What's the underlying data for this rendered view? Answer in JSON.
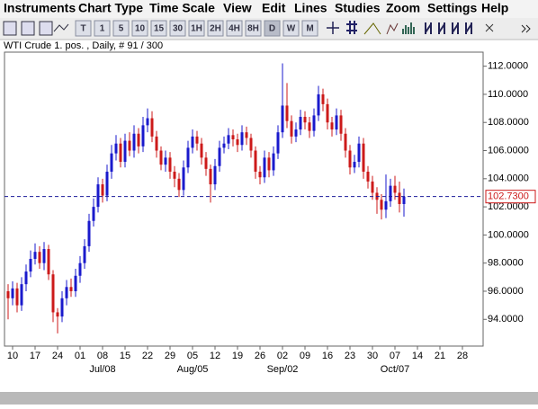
{
  "menu": [
    "Instruments",
    "Chart Type",
    "Time Scale",
    "View",
    "Edit",
    "Lines",
    "Studies",
    "Zoom",
    "Settings",
    "Help"
  ],
  "toolbar": {
    "buttons": [
      "T",
      "1",
      "5",
      "10",
      "15",
      "30",
      "1H",
      "2H",
      "4H",
      "8H",
      "D",
      "W",
      "M"
    ],
    "active": "D"
  },
  "chart_data": {
    "type": "candlestick",
    "title": "WTI Crude 1. pos. , Daily, # 91 / 300",
    "up_color": "#1a1acc",
    "down_color": "#cc1a1a",
    "x": [
      0,
      1,
      2,
      3,
      4,
      5,
      6,
      7,
      8,
      9,
      10,
      11,
      12,
      13,
      14,
      15,
      16,
      17,
      18,
      19,
      20,
      21,
      22,
      23,
      24,
      25,
      26,
      27,
      28,
      29,
      30,
      31,
      32,
      33,
      34,
      35,
      36,
      37,
      38,
      39,
      40,
      41,
      42,
      43,
      44,
      45,
      46,
      47,
      48,
      49,
      50,
      51,
      52,
      53,
      54,
      55,
      56,
      57,
      58,
      59,
      60,
      61,
      62,
      63,
      64,
      65,
      66,
      67,
      68,
      69,
      70,
      71,
      72,
      73,
      74,
      75,
      76,
      77,
      78,
      79,
      80,
      81,
      82,
      83,
      84,
      85,
      86,
      87,
      88
    ],
    "open": [
      96.0,
      95.5,
      96.2,
      95.0,
      96.5,
      97.4,
      98.3,
      98.8,
      98.0,
      99.0,
      97.2,
      94.5,
      94.2,
      95.5,
      96.3,
      96.0,
      97.1,
      98.0,
      99.2,
      101.0,
      102.0,
      103.6,
      102.8,
      104.5,
      105.8,
      106.5,
      105.2,
      106.7,
      106.0,
      107.2,
      106.3,
      107.8,
      108.3,
      107.0,
      106.0,
      105.0,
      105.5,
      104.5,
      104.0,
      103.2,
      104.8,
      106.2,
      107.0,
      106.5,
      105.5,
      104.7,
      103.6,
      104.9,
      106.2,
      106.5,
      107.1,
      106.8,
      106.4,
      107.3,
      106.9,
      106.0,
      104.5,
      104.1,
      105.5,
      104.6,
      105.8,
      107.3,
      109.2,
      108.1,
      107.0,
      107.5,
      108.4,
      108.0,
      107.4,
      108.5,
      110.0,
      109.3,
      108.0,
      107.5,
      108.5,
      107.2,
      106.0,
      104.8,
      105.2,
      106.5,
      104.5,
      103.8,
      103.0,
      102.5,
      101.8,
      102.4,
      103.5,
      103.0,
      102.2
    ],
    "high": [
      96.5,
      96.7,
      96.6,
      97.0,
      97.9,
      98.9,
      99.4,
      99.2,
      99.5,
      99.3,
      97.5,
      94.8,
      96.0,
      96.8,
      96.9,
      97.6,
      98.5,
      99.7,
      101.5,
      102.6,
      104.1,
      104.0,
      105.0,
      106.4,
      107.1,
      106.9,
      107.2,
      107.3,
      107.8,
      107.6,
      108.4,
      109.0,
      108.8,
      107.4,
      106.3,
      106.0,
      105.9,
      104.9,
      104.4,
      105.3,
      106.7,
      107.5,
      107.4,
      106.9,
      105.9,
      105.0,
      105.4,
      106.7,
      107.0,
      107.6,
      107.5,
      107.2,
      107.8,
      107.7,
      107.2,
      106.3,
      104.9,
      106.0,
      105.9,
      106.3,
      107.8,
      112.2,
      110.8,
      108.5,
      108.0,
      108.9,
      108.8,
      108.4,
      109.0,
      110.6,
      110.4,
      109.7,
      108.4,
      109.0,
      108.9,
      107.6,
      106.4,
      105.7,
      107.0,
      106.9,
      104.9,
      104.2,
      103.4,
      102.9,
      104.3,
      104.0,
      104.2,
      103.8,
      103.3
    ],
    "low": [
      94.0,
      95.0,
      94.5,
      94.6,
      96.0,
      97.0,
      97.9,
      97.6,
      97.5,
      96.8,
      93.8,
      93.0,
      93.8,
      95.0,
      95.6,
      95.6,
      96.6,
      97.6,
      98.8,
      100.6,
      101.6,
      102.3,
      102.4,
      104.0,
      105.3,
      104.8,
      104.8,
      105.6,
      105.5,
      105.8,
      105.9,
      107.3,
      106.6,
      105.5,
      104.6,
      104.5,
      104.0,
      103.4,
      102.7,
      102.8,
      104.4,
      105.8,
      106.0,
      105.0,
      104.2,
      102.3,
      103.2,
      104.5,
      105.8,
      106.1,
      106.3,
      105.9,
      106.0,
      106.4,
      105.5,
      104.0,
      103.6,
      103.7,
      104.1,
      104.2,
      105.4,
      106.9,
      107.6,
      106.5,
      106.6,
      107.1,
      107.5,
      106.9,
      107.0,
      108.1,
      108.8,
      107.5,
      107.0,
      107.1,
      106.7,
      105.5,
      104.3,
      104.4,
      104.8,
      104.0,
      103.3,
      102.5,
      101.5,
      101.1,
      101.2,
      102.0,
      102.5,
      101.6,
      101.3
    ],
    "close": [
      95.5,
      96.2,
      95.0,
      96.5,
      97.4,
      98.3,
      98.8,
      98.0,
      99.0,
      97.2,
      94.5,
      94.2,
      95.5,
      96.3,
      96.0,
      97.1,
      98.0,
      99.2,
      101.0,
      102.0,
      103.6,
      102.8,
      104.5,
      105.8,
      106.5,
      105.2,
      106.7,
      106.0,
      107.2,
      106.3,
      107.8,
      108.3,
      107.0,
      106.0,
      105.0,
      105.5,
      104.5,
      104.0,
      103.2,
      104.8,
      106.2,
      107.0,
      106.5,
      105.5,
      104.7,
      103.6,
      104.9,
      106.2,
      106.5,
      107.1,
      106.8,
      106.4,
      107.3,
      106.9,
      106.0,
      104.5,
      104.1,
      105.5,
      104.6,
      105.8,
      107.3,
      109.2,
      108.1,
      107.0,
      107.5,
      108.4,
      108.0,
      107.4,
      108.5,
      110.0,
      109.3,
      108.0,
      107.5,
      108.5,
      107.2,
      106.0,
      104.8,
      105.2,
      106.5,
      104.5,
      103.8,
      103.0,
      102.5,
      101.8,
      102.4,
      103.5,
      103.0,
      102.2,
      102.73
    ],
    "xlim": [
      -0.8,
      105.6
    ],
    "xticks": [
      {
        "value": 1,
        "label": "10"
      },
      {
        "value": 6,
        "label": "17"
      },
      {
        "value": 11,
        "label": "24"
      },
      {
        "value": 16,
        "label": "01"
      },
      {
        "value": 21,
        "label": "08"
      },
      {
        "value": 26,
        "label": "15"
      },
      {
        "value": 31,
        "label": "22"
      },
      {
        "value": 36,
        "label": "29"
      },
      {
        "value": 41,
        "label": "05"
      },
      {
        "value": 46,
        "label": "12"
      },
      {
        "value": 51,
        "label": "19"
      },
      {
        "value": 56,
        "label": "26"
      },
      {
        "value": 61,
        "label": "02"
      },
      {
        "value": 66,
        "label": "09"
      },
      {
        "value": 71,
        "label": "16"
      },
      {
        "value": 76,
        "label": "23"
      },
      {
        "value": 81,
        "label": "30"
      },
      {
        "value": 86,
        "label": "07"
      },
      {
        "value": 91,
        "label": "14"
      },
      {
        "value": 96,
        "label": "21"
      },
      {
        "value": 101,
        "label": "28"
      }
    ],
    "month_labels": [
      {
        "value": 21,
        "label": "Jul/08"
      },
      {
        "value": 41,
        "label": "Aug/05"
      },
      {
        "value": 61,
        "label": "Sep/02"
      },
      {
        "value": 86,
        "label": "Oct/07"
      }
    ],
    "ylim": [
      92.1,
      113.0
    ],
    "yticks": [
      {
        "value": 94,
        "label": "94.0000"
      },
      {
        "value": 96,
        "label": "96.0000"
      },
      {
        "value": 98,
        "label": "98.0000"
      },
      {
        "value": 100,
        "label": "100.0000"
      },
      {
        "value": 102,
        "label": "102.0000"
      },
      {
        "value": 104,
        "label": "104.0000"
      },
      {
        "value": 106,
        "label": "106.0000"
      },
      {
        "value": 108,
        "label": "108.0000"
      },
      {
        "value": 110,
        "label": "110.0000"
      },
      {
        "value": 112,
        "label": "112.0000"
      }
    ],
    "current_price": {
      "value": 102.73,
      "label": "102.7300"
    }
  }
}
